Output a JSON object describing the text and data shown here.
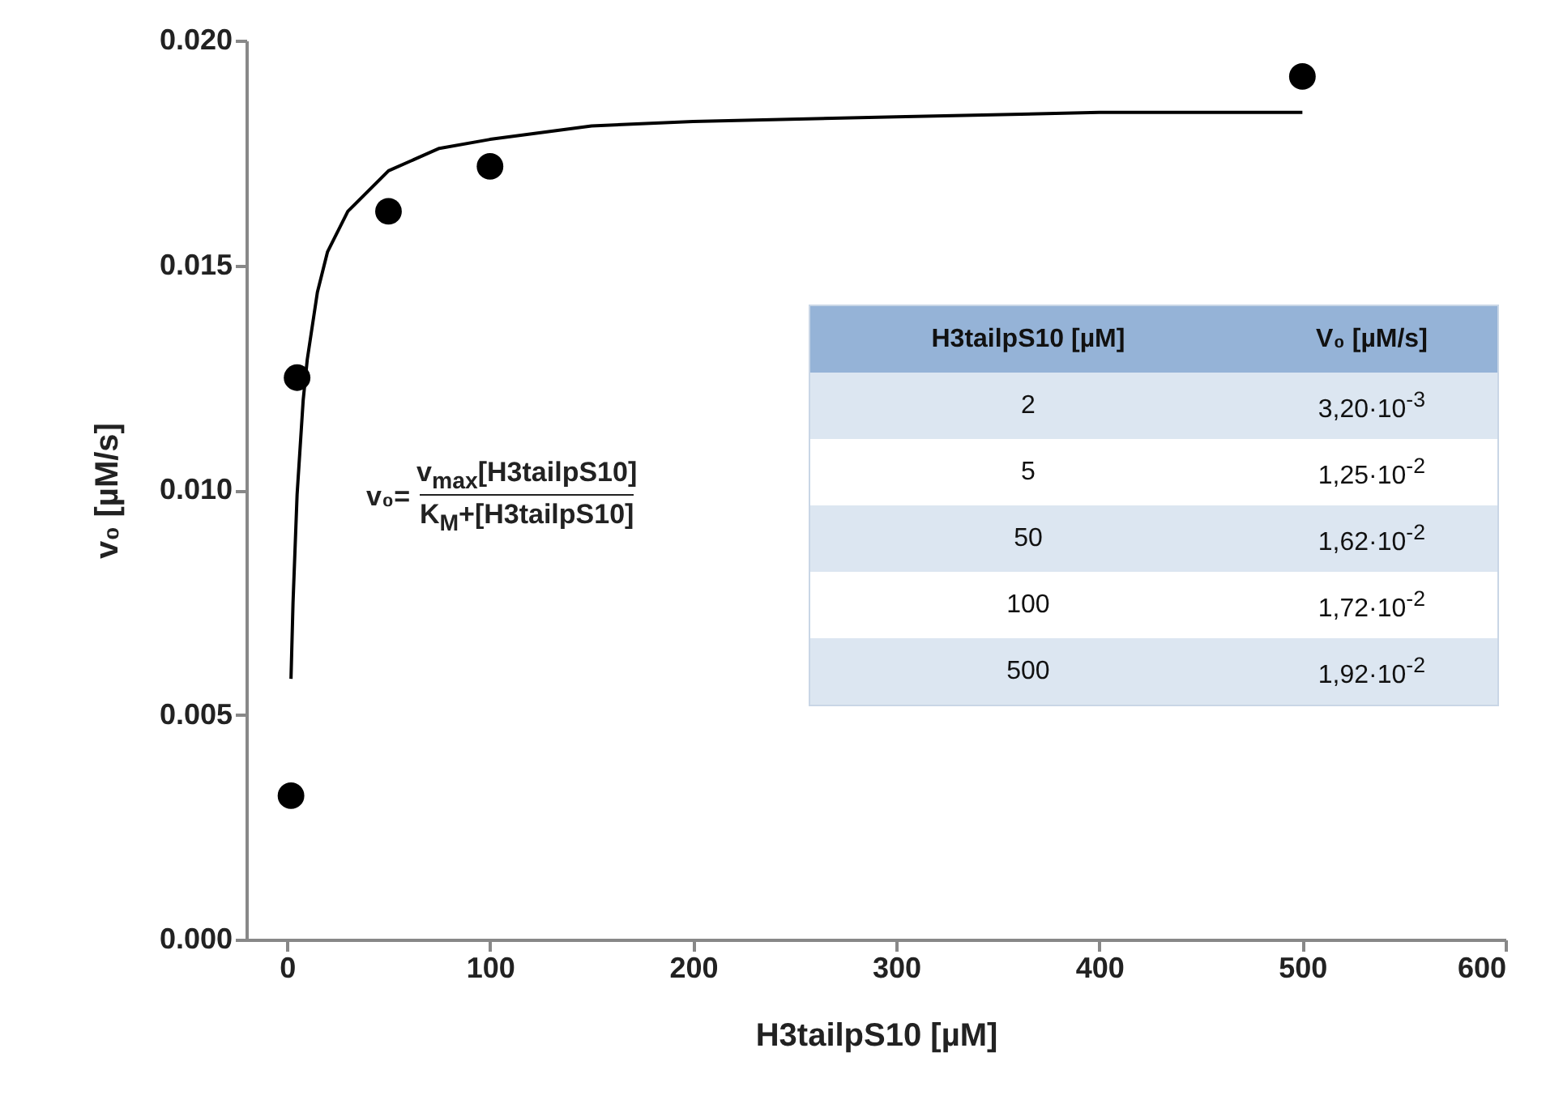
{
  "chart_data": {
    "type": "scatter",
    "xlabel": "H3tailpS10 [µM]",
    "ylabel": "v₀ [µM/s]",
    "x": [
      2,
      5,
      50,
      100,
      500
    ],
    "xlim": [
      -20,
      600
    ],
    "xticks": [
      0,
      100,
      200,
      300,
      400,
      500,
      600
    ],
    "ylim": [
      0,
      0.02
    ],
    "yticks": [
      {
        "value": 0,
        "label": "0.000"
      },
      {
        "value": 0.005,
        "label": "0.005"
      },
      {
        "value": 0.01,
        "label": "0.010"
      },
      {
        "value": 0.015,
        "label": "0.015"
      },
      {
        "value": 0.02,
        "label": "0.020"
      }
    ],
    "series": [
      {
        "color": "#000000",
        "marker": "circle",
        "values": [
          0.0032,
          0.0125,
          0.0162,
          0.0172,
          0.0192
        ]
      },
      {
        "type": "line",
        "color": "#000000",
        "x": [
          2,
          3,
          5,
          8,
          10,
          15,
          20,
          30,
          50,
          75,
          100,
          150,
          200,
          300,
          400,
          500
        ],
        "values": [
          0.0058,
          0.0075,
          0.0099,
          0.012,
          0.0129,
          0.0144,
          0.0153,
          0.0162,
          0.0171,
          0.0176,
          0.0178,
          0.0181,
          0.0182,
          0.0183,
          0.0184,
          0.0184
        ]
      }
    ],
    "annotations": [
      "v₀=",
      "v$_{max}$[H3tailpS10]",
      "K$_{M}$+[H3tailpS10]",
      "H3tailpS10 [µM]",
      "V₀ [µM/s]",
      "2",
      "3,20·10$^{-3}$",
      "5",
      "1,25·10$^{-2}$",
      "50",
      "1,62·10$^{-2}$",
      "100",
      "1,72·10$^{-2}$",
      "500",
      "1,92·10$^{-2}$"
    ]
  }
}
